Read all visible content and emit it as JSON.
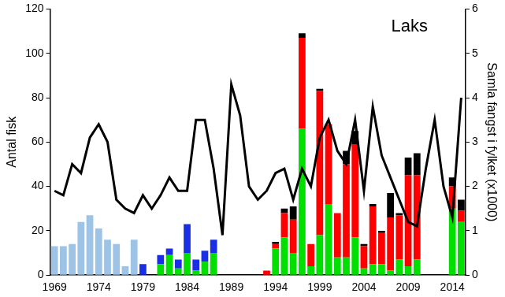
{
  "chart_data": {
    "type": "bar",
    "title": "Laks",
    "y_label": "Antal fisk",
    "y2_label": "Samla fangst i fylket (x1000)",
    "categories": [
      1969,
      null,
      null,
      null,
      null,
      1974,
      null,
      null,
      null,
      null,
      1979,
      null,
      null,
      null,
      null,
      1984,
      null,
      null,
      null,
      null,
      1989,
      null,
      null,
      null,
      null,
      1994,
      null,
      null,
      null,
      null,
      1999,
      null,
      null,
      null,
      null,
      2004,
      null,
      null,
      null,
      null,
      2009,
      null,
      null,
      null,
      null,
      2014,
      null
    ],
    "stacked": true,
    "grid": false,
    "ylim": [
      0,
      120
    ],
    "yticks": [
      0,
      20,
      40,
      60,
      80,
      100,
      120
    ],
    "y2lim": [
      0,
      6
    ],
    "y2ticks": [
      0,
      1,
      2,
      3,
      4,
      5,
      6
    ],
    "series": [
      {
        "type": "bar",
        "color": "#9dc3e6",
        "values": [
          13,
          13,
          14,
          24,
          27,
          21,
          16,
          14,
          4,
          16,
          null,
          null,
          null,
          null,
          null,
          null,
          null,
          null,
          null,
          null,
          null,
          null,
          null,
          null,
          null,
          null,
          null,
          null,
          null,
          null,
          null,
          null,
          null,
          null,
          null,
          null,
          null,
          null,
          null,
          null,
          null,
          null,
          null,
          null,
          null,
          null,
          null
        ]
      },
      {
        "type": "bar",
        "color": "#00e000",
        "values": [
          null,
          null,
          null,
          null,
          null,
          null,
          null,
          null,
          null,
          null,
          null,
          null,
          5,
          9,
          3,
          10,
          2,
          6,
          10,
          null,
          null,
          null,
          null,
          null,
          null,
          12,
          17,
          10,
          66,
          4,
          18,
          32,
          8,
          8,
          17,
          3,
          5,
          5,
          2,
          7,
          4,
          7,
          null,
          null,
          null,
          30,
          24
        ]
      },
      {
        "type": "bar",
        "color": "#1a2ee6",
        "values": [
          null,
          null,
          null,
          null,
          null,
          null,
          null,
          null,
          null,
          null,
          5,
          null,
          4,
          3,
          4,
          13,
          5,
          5,
          6,
          null,
          null,
          null,
          null,
          null,
          null,
          null,
          null,
          null,
          null,
          null,
          null,
          null,
          null,
          null,
          null,
          null,
          null,
          null,
          null,
          null,
          null,
          null,
          null,
          null,
          null,
          null,
          null
        ]
      },
      {
        "type": "bar",
        "color": "#ff0000",
        "values": [
          null,
          null,
          null,
          null,
          null,
          null,
          null,
          null,
          null,
          null,
          null,
          null,
          null,
          null,
          null,
          null,
          null,
          null,
          null,
          null,
          null,
          null,
          null,
          null,
          2,
          2,
          11,
          15,
          41,
          10,
          65,
          36,
          20,
          42,
          42,
          10,
          26,
          14,
          24,
          20,
          41,
          38,
          null,
          null,
          null,
          10,
          5
        ]
      },
      {
        "type": "bar",
        "color": "#000000",
        "values": [
          null,
          null,
          null,
          null,
          null,
          null,
          null,
          null,
          null,
          null,
          null,
          null,
          null,
          null,
          null,
          null,
          null,
          null,
          null,
          null,
          null,
          null,
          null,
          null,
          null,
          1,
          2,
          6,
          2,
          null,
          1,
          null,
          null,
          6,
          6,
          1,
          1,
          1,
          11,
          1,
          8,
          10,
          null,
          null,
          null,
          4,
          5
        ]
      },
      {
        "type": "line",
        "axis": "y2",
        "color": "#000000",
        "values": [
          1.9,
          1.8,
          2.5,
          2.3,
          3.1,
          3.4,
          3.0,
          1.7,
          1.5,
          1.4,
          1.8,
          1.5,
          1.8,
          2.2,
          1.9,
          1.9,
          3.5,
          3.5,
          2.4,
          0.9,
          4.3,
          3.6,
          2.0,
          1.7,
          1.9,
          2.3,
          2.4,
          1.7,
          2.4,
          2.0,
          3.1,
          3.5,
          2.8,
          2.5,
          3.5,
          1.9,
          3.8,
          2.7,
          2.2,
          1.7,
          1.2,
          1.1,
          2.4,
          3.5,
          2.0,
          1.3,
          4.0
        ]
      }
    ]
  }
}
